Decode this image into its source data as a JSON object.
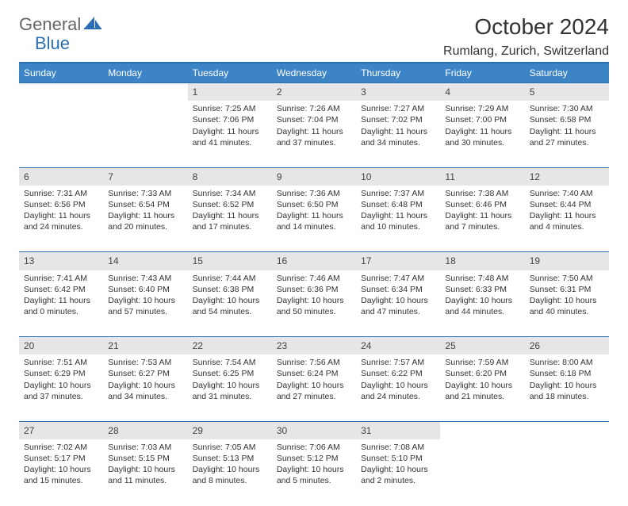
{
  "logo": {
    "text_general": "General",
    "text_blue": "Blue"
  },
  "header": {
    "title": "October 2024",
    "location": "Rumlang, Zurich, Switzerland"
  },
  "colors": {
    "header_bg": "#3d84c6",
    "rule": "#2a6fb5",
    "daynum_bg": "#e6e6e6",
    "text": "#333333"
  },
  "calendar": {
    "weekdays": [
      "Sunday",
      "Monday",
      "Tuesday",
      "Wednesday",
      "Thursday",
      "Friday",
      "Saturday"
    ],
    "cell_fontsize": 10.5,
    "weeks": [
      [
        null,
        null,
        {
          "day": 1,
          "sunrise": "Sunrise: 7:25 AM",
          "sunset": "Sunset: 7:06 PM",
          "daylight": "Daylight: 11 hours and 41 minutes."
        },
        {
          "day": 2,
          "sunrise": "Sunrise: 7:26 AM",
          "sunset": "Sunset: 7:04 PM",
          "daylight": "Daylight: 11 hours and 37 minutes."
        },
        {
          "day": 3,
          "sunrise": "Sunrise: 7:27 AM",
          "sunset": "Sunset: 7:02 PM",
          "daylight": "Daylight: 11 hours and 34 minutes."
        },
        {
          "day": 4,
          "sunrise": "Sunrise: 7:29 AM",
          "sunset": "Sunset: 7:00 PM",
          "daylight": "Daylight: 11 hours and 30 minutes."
        },
        {
          "day": 5,
          "sunrise": "Sunrise: 7:30 AM",
          "sunset": "Sunset: 6:58 PM",
          "daylight": "Daylight: 11 hours and 27 minutes."
        }
      ],
      [
        {
          "day": 6,
          "sunrise": "Sunrise: 7:31 AM",
          "sunset": "Sunset: 6:56 PM",
          "daylight": "Daylight: 11 hours and 24 minutes."
        },
        {
          "day": 7,
          "sunrise": "Sunrise: 7:33 AM",
          "sunset": "Sunset: 6:54 PM",
          "daylight": "Daylight: 11 hours and 20 minutes."
        },
        {
          "day": 8,
          "sunrise": "Sunrise: 7:34 AM",
          "sunset": "Sunset: 6:52 PM",
          "daylight": "Daylight: 11 hours and 17 minutes."
        },
        {
          "day": 9,
          "sunrise": "Sunrise: 7:36 AM",
          "sunset": "Sunset: 6:50 PM",
          "daylight": "Daylight: 11 hours and 14 minutes."
        },
        {
          "day": 10,
          "sunrise": "Sunrise: 7:37 AM",
          "sunset": "Sunset: 6:48 PM",
          "daylight": "Daylight: 11 hours and 10 minutes."
        },
        {
          "day": 11,
          "sunrise": "Sunrise: 7:38 AM",
          "sunset": "Sunset: 6:46 PM",
          "daylight": "Daylight: 11 hours and 7 minutes."
        },
        {
          "day": 12,
          "sunrise": "Sunrise: 7:40 AM",
          "sunset": "Sunset: 6:44 PM",
          "daylight": "Daylight: 11 hours and 4 minutes."
        }
      ],
      [
        {
          "day": 13,
          "sunrise": "Sunrise: 7:41 AM",
          "sunset": "Sunset: 6:42 PM",
          "daylight": "Daylight: 11 hours and 0 minutes."
        },
        {
          "day": 14,
          "sunrise": "Sunrise: 7:43 AM",
          "sunset": "Sunset: 6:40 PM",
          "daylight": "Daylight: 10 hours and 57 minutes."
        },
        {
          "day": 15,
          "sunrise": "Sunrise: 7:44 AM",
          "sunset": "Sunset: 6:38 PM",
          "daylight": "Daylight: 10 hours and 54 minutes."
        },
        {
          "day": 16,
          "sunrise": "Sunrise: 7:46 AM",
          "sunset": "Sunset: 6:36 PM",
          "daylight": "Daylight: 10 hours and 50 minutes."
        },
        {
          "day": 17,
          "sunrise": "Sunrise: 7:47 AM",
          "sunset": "Sunset: 6:34 PM",
          "daylight": "Daylight: 10 hours and 47 minutes."
        },
        {
          "day": 18,
          "sunrise": "Sunrise: 7:48 AM",
          "sunset": "Sunset: 6:33 PM",
          "daylight": "Daylight: 10 hours and 44 minutes."
        },
        {
          "day": 19,
          "sunrise": "Sunrise: 7:50 AM",
          "sunset": "Sunset: 6:31 PM",
          "daylight": "Daylight: 10 hours and 40 minutes."
        }
      ],
      [
        {
          "day": 20,
          "sunrise": "Sunrise: 7:51 AM",
          "sunset": "Sunset: 6:29 PM",
          "daylight": "Daylight: 10 hours and 37 minutes."
        },
        {
          "day": 21,
          "sunrise": "Sunrise: 7:53 AM",
          "sunset": "Sunset: 6:27 PM",
          "daylight": "Daylight: 10 hours and 34 minutes."
        },
        {
          "day": 22,
          "sunrise": "Sunrise: 7:54 AM",
          "sunset": "Sunset: 6:25 PM",
          "daylight": "Daylight: 10 hours and 31 minutes."
        },
        {
          "day": 23,
          "sunrise": "Sunrise: 7:56 AM",
          "sunset": "Sunset: 6:24 PM",
          "daylight": "Daylight: 10 hours and 27 minutes."
        },
        {
          "day": 24,
          "sunrise": "Sunrise: 7:57 AM",
          "sunset": "Sunset: 6:22 PM",
          "daylight": "Daylight: 10 hours and 24 minutes."
        },
        {
          "day": 25,
          "sunrise": "Sunrise: 7:59 AM",
          "sunset": "Sunset: 6:20 PM",
          "daylight": "Daylight: 10 hours and 21 minutes."
        },
        {
          "day": 26,
          "sunrise": "Sunrise: 8:00 AM",
          "sunset": "Sunset: 6:18 PM",
          "daylight": "Daylight: 10 hours and 18 minutes."
        }
      ],
      [
        {
          "day": 27,
          "sunrise": "Sunrise: 7:02 AM",
          "sunset": "Sunset: 5:17 PM",
          "daylight": "Daylight: 10 hours and 15 minutes."
        },
        {
          "day": 28,
          "sunrise": "Sunrise: 7:03 AM",
          "sunset": "Sunset: 5:15 PM",
          "daylight": "Daylight: 10 hours and 11 minutes."
        },
        {
          "day": 29,
          "sunrise": "Sunrise: 7:05 AM",
          "sunset": "Sunset: 5:13 PM",
          "daylight": "Daylight: 10 hours and 8 minutes."
        },
        {
          "day": 30,
          "sunrise": "Sunrise: 7:06 AM",
          "sunset": "Sunset: 5:12 PM",
          "daylight": "Daylight: 10 hours and 5 minutes."
        },
        {
          "day": 31,
          "sunrise": "Sunrise: 7:08 AM",
          "sunset": "Sunset: 5:10 PM",
          "daylight": "Daylight: 10 hours and 2 minutes."
        },
        null,
        null
      ]
    ]
  }
}
